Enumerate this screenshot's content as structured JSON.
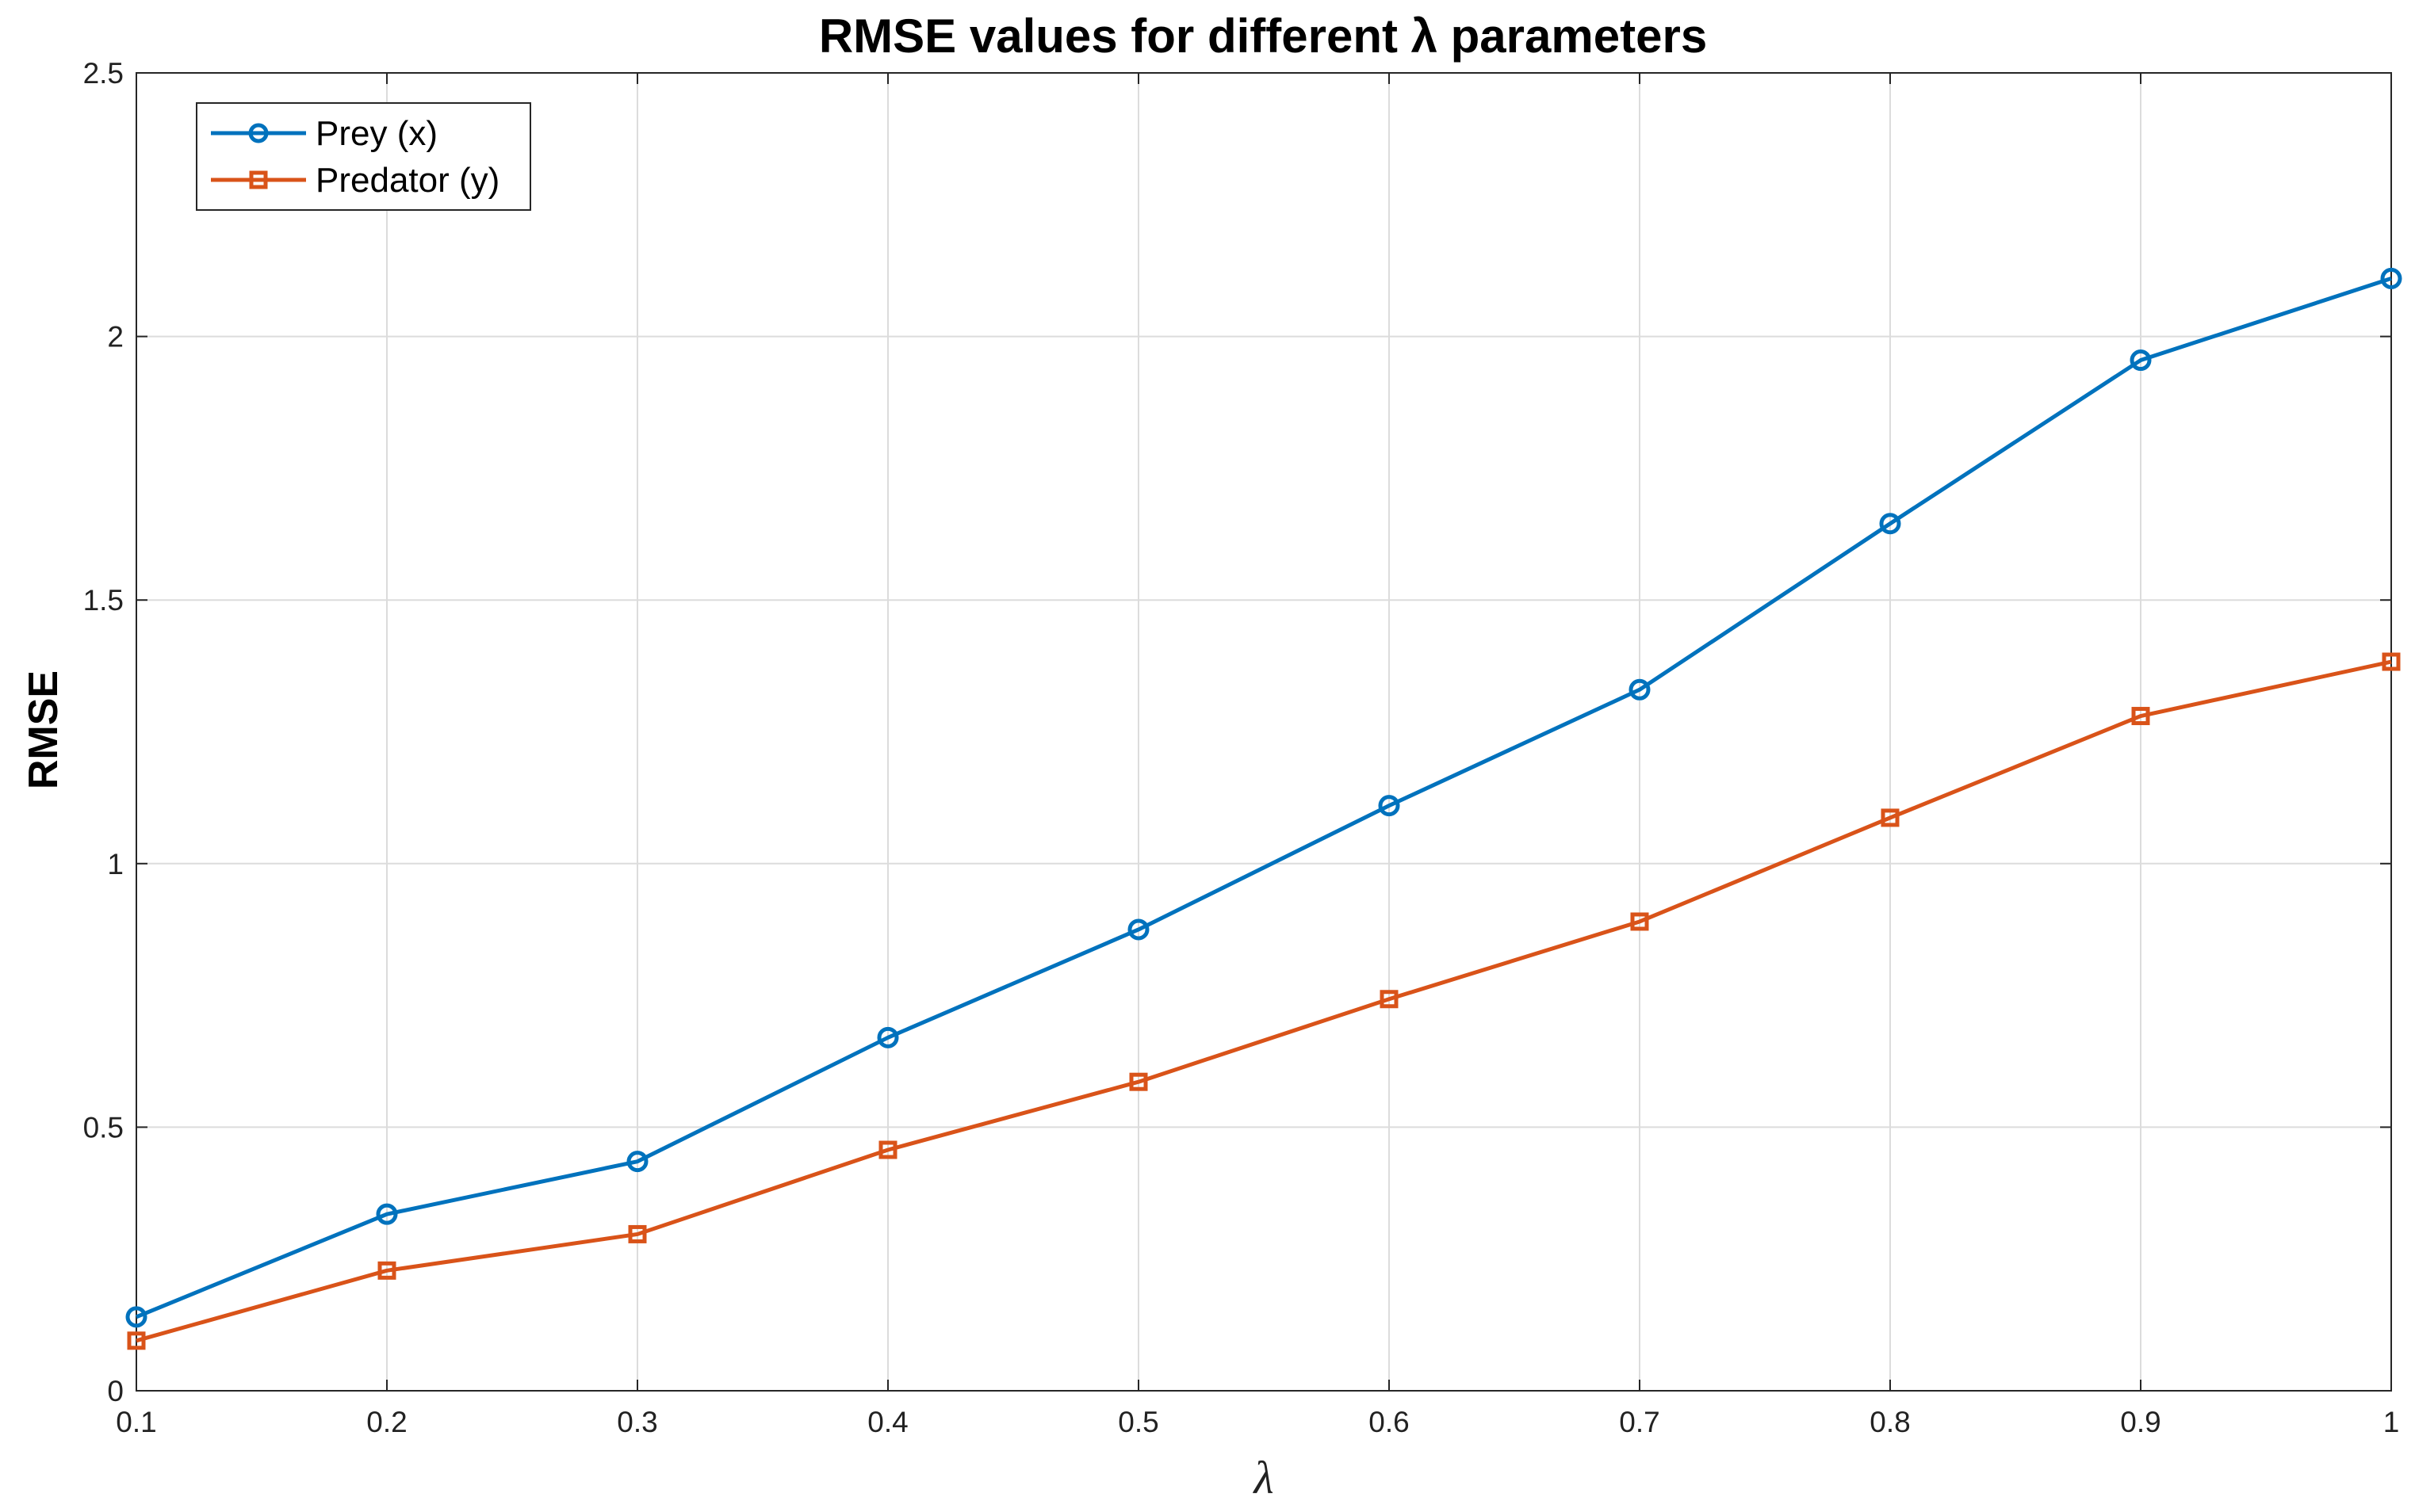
{
  "chart_data": {
    "type": "line",
    "title": "RMSE values for different λ parameters",
    "xlabel": "λ",
    "ylabel": "RMSE",
    "x": [
      0.1,
      0.2,
      0.3,
      0.4,
      0.5,
      0.6,
      0.7,
      0.8,
      0.9,
      1
    ],
    "xlim": [
      0.1,
      1
    ],
    "ylim": [
      0,
      2.5
    ],
    "xticks": [
      "0.1",
      "0.2",
      "0.3",
      "0.4",
      "0.5",
      "0.6",
      "0.7",
      "0.8",
      "0.9",
      "1"
    ],
    "yticks": [
      "0",
      "0.5",
      "1",
      "1.5",
      "2",
      "2.5"
    ],
    "grid": true,
    "legend_position": "top-left",
    "series": [
      {
        "name": "Prey (x)",
        "color": "#0072BD",
        "marker": "circle",
        "values": [
          0.14,
          0.335,
          0.435,
          0.67,
          0.875,
          1.11,
          1.33,
          1.645,
          1.955,
          2.11
        ]
      },
      {
        "name": "Predator (y)",
        "color": "#D95319",
        "marker": "square",
        "values": [
          0.095,
          0.228,
          0.297,
          0.457,
          0.586,
          0.743,
          0.89,
          1.087,
          1.28,
          1.383
        ]
      }
    ]
  }
}
